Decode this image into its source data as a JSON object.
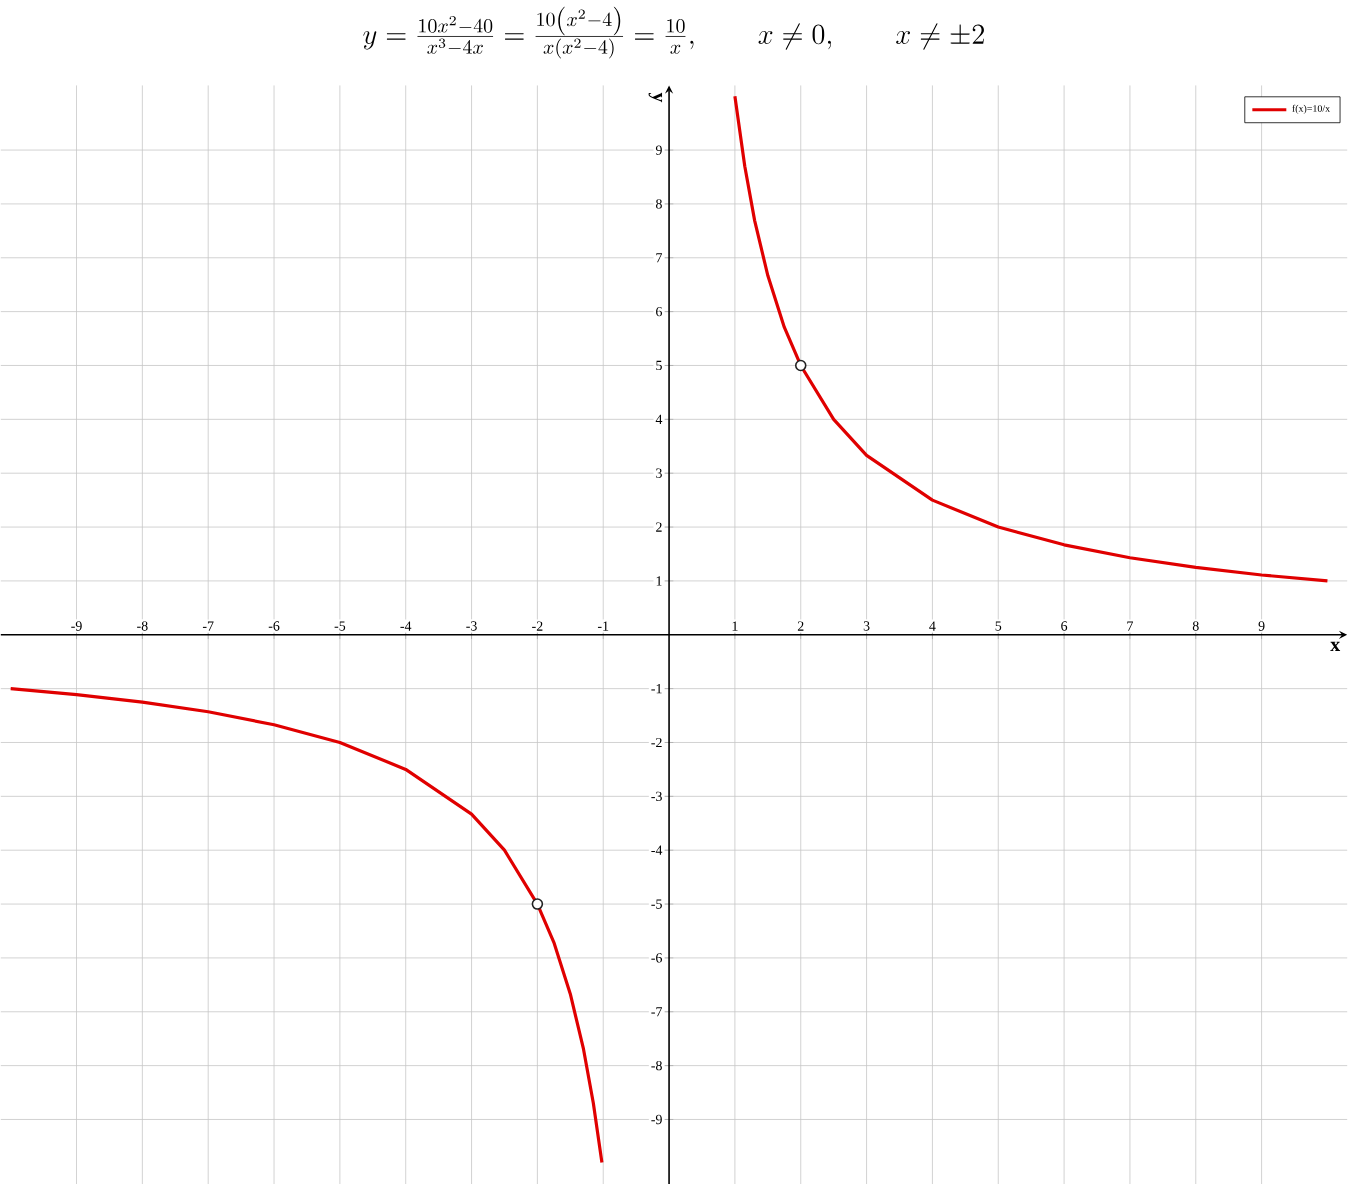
{
  "chart_data": {
    "type": "line",
    "title": "y=\\frac{10x^2-40}{x^3-4x}=\\frac{10\\left(x^2-4\\right)}{x\\left(x^2-4\\right)}=\\frac{10}{x},\\qquad x\\neq 0,\\qquad x\\neq \\pm 2",
    "xlabel": "x",
    "ylabel": "y",
    "xlim": [
      -10.15,
      10.3
    ],
    "ylim": [
      -10.2,
      10.2
    ],
    "xticks": [
      -9,
      -8,
      -7,
      -6,
      -5,
      -4,
      -3,
      -2,
      -1,
      1,
      2,
      3,
      4,
      5,
      6,
      7,
      8,
      9
    ],
    "yticks": [
      -9,
      -8,
      -7,
      -6,
      -5,
      -4,
      -3,
      -2,
      -1,
      1,
      2,
      3,
      4,
      5,
      6,
      7,
      8,
      9
    ],
    "grid": true,
    "legend": "top right",
    "series": [
      {
        "name": "f(x)=10/x",
        "color": "#e00000",
        "marker": "none",
        "x": [
          -10,
          -9,
          -8,
          -7,
          -6,
          -5,
          -4,
          -3,
          -2.5,
          -2,
          -1.75,
          -1.5,
          -1.3,
          -1.15,
          -1.02,
          0,
          1.0,
          1.15,
          1.3,
          1.5,
          1.75,
          2,
          2.5,
          3,
          4,
          5,
          6,
          7,
          8,
          9,
          10
        ],
        "values": [
          -1,
          -1.11,
          -1.25,
          -1.43,
          -1.67,
          -2,
          -2.5,
          -3.33,
          -4,
          -5,
          -5.71,
          -6.67,
          -7.69,
          -8.7,
          -9.8,
          null,
          10,
          8.7,
          7.69,
          6.67,
          5.71,
          5,
          4,
          3.33,
          2.5,
          2,
          1.67,
          1.43,
          1.25,
          1.11,
          1
        ]
      },
      {
        "type": "scatter",
        "color": "#222222",
        "marker": "circle",
        "x": [
          -2,
          2
        ],
        "values": [
          -5,
          5
        ]
      }
    ]
  }
}
